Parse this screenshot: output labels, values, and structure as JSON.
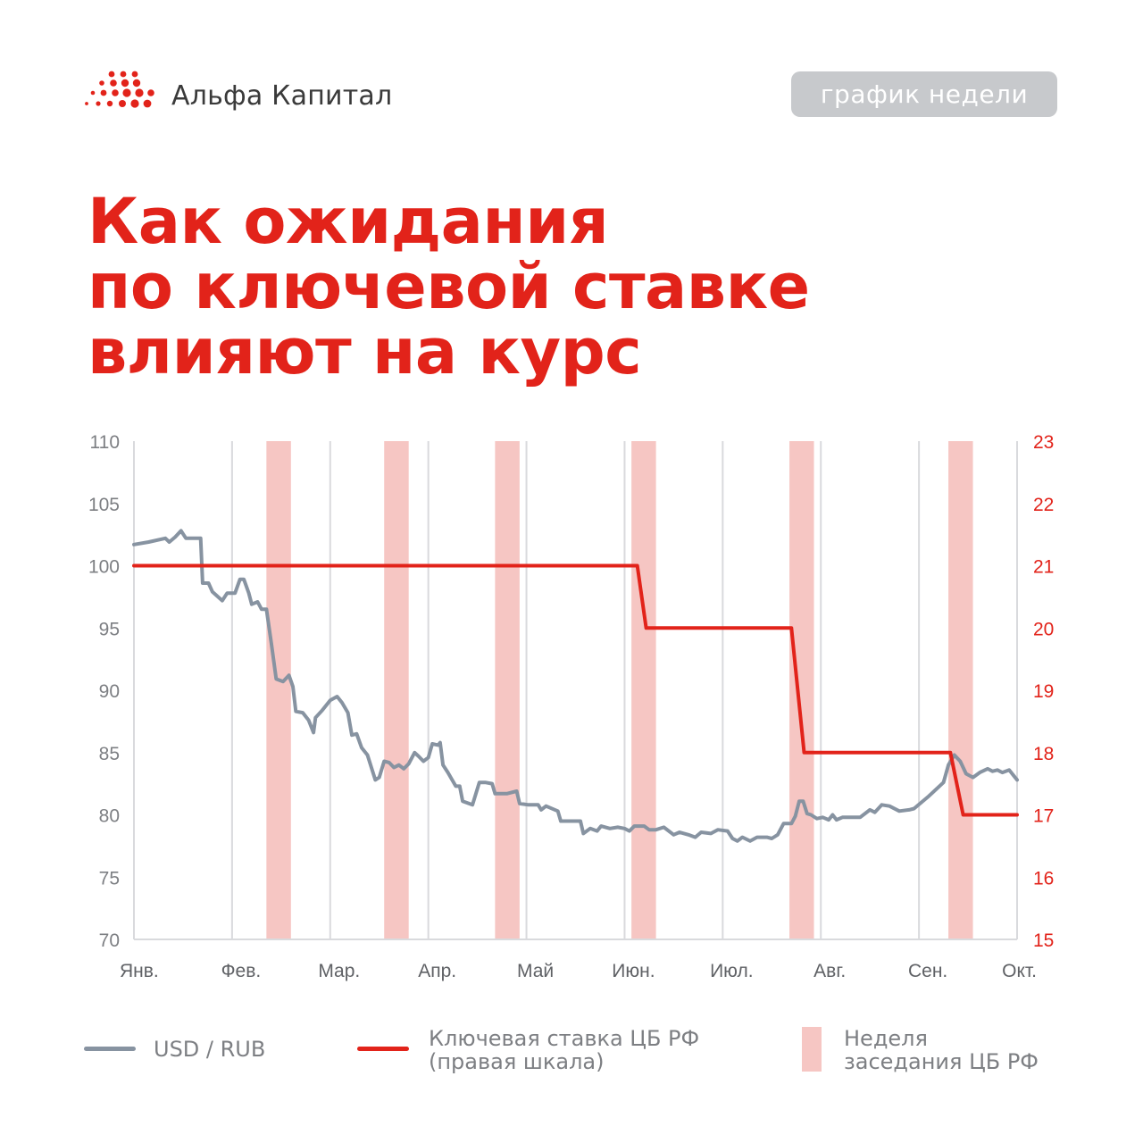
{
  "header": {
    "logo_text": "Альфа Капитал",
    "badge": "график недели"
  },
  "headline": {
    "line1": "Как ожидания",
    "line2": "по ключевой ставке",
    "line3": "влияют на курс"
  },
  "colors": {
    "accent_red": "#e2231a",
    "usd_line": "#8793a1",
    "meeting_band": "#f6c6c3",
    "grid": "#d9dadd",
    "axis_text": "#7d7f83"
  },
  "legend": {
    "usd": "USD / RUB",
    "rate_line1": "Ключевая ставка ЦБ РФ",
    "rate_line2": "(правая шкала)",
    "week_line1": "Неделя",
    "week_line2": "заседания ЦБ РФ"
  },
  "chart_data": {
    "type": "line",
    "x_unit": "months from start of January",
    "months": [
      "Янв.",
      "Фев.",
      "Мар.",
      "Апр.",
      "Май",
      "Июн.",
      "Июл.",
      "Авг.",
      "Сен.",
      "Окт."
    ],
    "xlim": [
      0,
      9
    ],
    "ylim_left": [
      70,
      110
    ],
    "yticks_left": [
      70,
      75,
      80,
      85,
      90,
      95,
      100,
      105,
      110
    ],
    "ylim_right": [
      15,
      23
    ],
    "yticks_right": [
      15,
      16,
      17,
      18,
      19,
      20,
      21,
      22,
      23
    ],
    "grid": "vertical",
    "meeting_weeks": [
      [
        1.35,
        1.6
      ],
      [
        2.55,
        2.8
      ],
      [
        3.68,
        3.93
      ],
      [
        5.07,
        5.32
      ],
      [
        6.68,
        6.93
      ],
      [
        8.3,
        8.55
      ]
    ],
    "series": [
      {
        "name": "USD / RUB",
        "axis": "left",
        "points": [
          [
            0,
            101.7
          ],
          [
            0.15,
            101.9
          ],
          [
            0.32,
            102.2
          ],
          [
            0.36,
            101.9
          ],
          [
            0.42,
            102.3
          ],
          [
            0.48,
            102.8
          ],
          [
            0.53,
            102.2
          ],
          [
            0.68,
            102.2
          ],
          [
            0.7,
            98.6
          ],
          [
            0.76,
            98.6
          ],
          [
            0.8,
            97.9
          ],
          [
            0.9,
            97.2
          ],
          [
            0.95,
            97.8
          ],
          [
            1.03,
            97.8
          ],
          [
            1.08,
            98.9
          ],
          [
            1.12,
            98.9
          ],
          [
            1.17,
            97.8
          ],
          [
            1.2,
            96.9
          ],
          [
            1.26,
            97.1
          ],
          [
            1.3,
            96.5
          ],
          [
            1.35,
            96.5
          ],
          [
            1.4,
            93.8
          ],
          [
            1.45,
            90.9
          ],
          [
            1.52,
            90.7
          ],
          [
            1.58,
            91.2
          ],
          [
            1.62,
            90.3
          ],
          [
            1.65,
            88.3
          ],
          [
            1.72,
            88.2
          ],
          [
            1.78,
            87.6
          ],
          [
            1.83,
            86.6
          ],
          [
            1.85,
            87.8
          ],
          [
            1.92,
            88.4
          ],
          [
            2.0,
            89.2
          ],
          [
            2.07,
            89.5
          ],
          [
            2.12,
            89.0
          ],
          [
            2.18,
            88.2
          ],
          [
            2.22,
            86.4
          ],
          [
            2.27,
            86.5
          ],
          [
            2.32,
            85.4
          ],
          [
            2.38,
            84.8
          ],
          [
            2.42,
            83.8
          ],
          [
            2.46,
            82.8
          ],
          [
            2.5,
            83.0
          ],
          [
            2.55,
            84.3
          ],
          [
            2.6,
            84.2
          ],
          [
            2.65,
            83.8
          ],
          [
            2.7,
            84.0
          ],
          [
            2.75,
            83.7
          ],
          [
            2.8,
            84.1
          ],
          [
            2.86,
            85.0
          ],
          [
            2.9,
            84.7
          ],
          [
            2.95,
            84.3
          ],
          [
            3.0,
            84.6
          ],
          [
            3.04,
            85.7
          ],
          [
            3.1,
            85.6
          ],
          [
            3.12,
            85.8
          ],
          [
            3.15,
            84.0
          ],
          [
            3.2,
            83.4
          ],
          [
            3.28,
            82.3
          ],
          [
            3.32,
            82.3
          ],
          [
            3.35,
            81.1
          ],
          [
            3.45,
            80.8
          ],
          [
            3.52,
            82.6
          ],
          [
            3.58,
            82.6
          ],
          [
            3.65,
            82.5
          ],
          [
            3.68,
            81.7
          ],
          [
            3.8,
            81.7
          ],
          [
            3.9,
            81.9
          ],
          [
            3.93,
            80.9
          ],
          [
            4.02,
            80.8
          ],
          [
            4.12,
            80.8
          ],
          [
            4.15,
            80.4
          ],
          [
            4.2,
            80.7
          ],
          [
            4.32,
            80.3
          ],
          [
            4.35,
            79.5
          ],
          [
            4.45,
            79.5
          ],
          [
            4.55,
            79.5
          ],
          [
            4.58,
            78.5
          ],
          [
            4.65,
            78.9
          ],
          [
            4.72,
            78.7
          ],
          [
            4.76,
            79.1
          ],
          [
            4.85,
            78.9
          ],
          [
            4.93,
            79.0
          ],
          [
            5.0,
            78.9
          ],
          [
            5.05,
            78.7
          ],
          [
            5.1,
            79.1
          ],
          [
            5.2,
            79.1
          ],
          [
            5.25,
            78.8
          ],
          [
            5.32,
            78.8
          ],
          [
            5.4,
            79.0
          ],
          [
            5.5,
            78.4
          ],
          [
            5.56,
            78.6
          ],
          [
            5.65,
            78.4
          ],
          [
            5.72,
            78.2
          ],
          [
            5.78,
            78.6
          ],
          [
            5.88,
            78.5
          ],
          [
            5.95,
            78.8
          ],
          [
            6.05,
            78.7
          ],
          [
            6.1,
            78.1
          ],
          [
            6.15,
            77.9
          ],
          [
            6.2,
            78.2
          ],
          [
            6.28,
            77.9
          ],
          [
            6.35,
            78.2
          ],
          [
            6.45,
            78.2
          ],
          [
            6.5,
            78.1
          ],
          [
            6.56,
            78.4
          ],
          [
            6.62,
            79.3
          ],
          [
            6.7,
            79.3
          ],
          [
            6.74,
            79.9
          ],
          [
            6.78,
            81.1
          ],
          [
            6.82,
            81.1
          ],
          [
            6.86,
            80.1
          ],
          [
            6.9,
            80.0
          ],
          [
            6.96,
            79.7
          ],
          [
            7.02,
            79.8
          ],
          [
            7.08,
            79.6
          ],
          [
            7.12,
            80.0
          ],
          [
            7.16,
            79.6
          ],
          [
            7.22,
            79.8
          ],
          [
            7.3,
            79.8
          ],
          [
            7.4,
            79.8
          ],
          [
            7.5,
            80.4
          ],
          [
            7.55,
            80.2
          ],
          [
            7.62,
            80.8
          ],
          [
            7.7,
            80.7
          ],
          [
            7.8,
            80.3
          ],
          [
            7.9,
            80.4
          ],
          [
            7.95,
            80.5
          ],
          [
            8.1,
            81.5
          ],
          [
            8.25,
            82.6
          ],
          [
            8.3,
            84.0
          ],
          [
            8.36,
            84.8
          ],
          [
            8.42,
            84.3
          ],
          [
            8.48,
            83.3
          ],
          [
            8.55,
            83.0
          ],
          [
            8.62,
            83.4
          ],
          [
            8.7,
            83.7
          ],
          [
            8.75,
            83.5
          ],
          [
            8.8,
            83.6
          ],
          [
            8.85,
            83.4
          ],
          [
            8.92,
            83.6
          ],
          [
            8.96,
            83.2
          ],
          [
            9.0,
            82.8
          ]
        ]
      },
      {
        "name": "Ключевая ставка ЦБ РФ (правая шкала)",
        "axis": "right",
        "points": [
          [
            0,
            21
          ],
          [
            5.13,
            21
          ],
          [
            5.22,
            20
          ],
          [
            6.7,
            20
          ],
          [
            6.83,
            18
          ],
          [
            8.32,
            18
          ],
          [
            8.45,
            17
          ],
          [
            9.0,
            17
          ]
        ]
      }
    ]
  }
}
